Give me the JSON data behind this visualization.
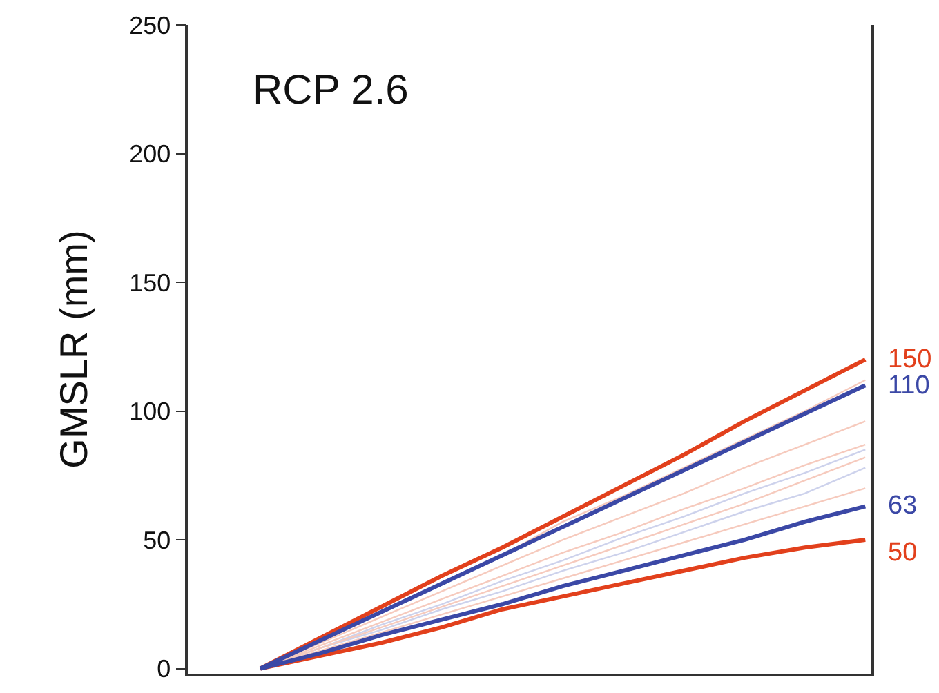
{
  "chart_data": {
    "type": "line",
    "title": "RCP 2.6",
    "ylabel": "GMSLR (mm)",
    "categories": [
      null,
      null,
      null,
      null,
      null,
      null,
      null,
      null,
      null,
      null,
      null
    ],
    "ylim": [
      -2,
      250
    ],
    "yticks": [
      0,
      50,
      100,
      150,
      200,
      250
    ],
    "tick_labels": "y",
    "grid": false,
    "series": [
      {
        "color": "#f6cabd",
        "values": [
          0,
          11,
          22,
          33,
          44,
          57,
          67,
          78,
          89,
          100,
          112
        ]
      },
      {
        "color": "#f6cabd",
        "values": [
          0,
          10,
          20,
          30,
          40,
          50,
          59,
          68,
          78,
          87,
          96
        ]
      },
      {
        "color": "#f6cabd",
        "values": [
          0,
          9,
          18,
          27,
          36,
          45,
          53,
          62,
          70,
          79,
          87
        ]
      },
      {
        "color": "#f6cabd",
        "values": [
          0,
          8,
          16,
          24,
          32,
          40,
          48,
          56,
          64,
          73,
          82
        ]
      },
      {
        "color": "#f6cabd",
        "values": [
          0,
          7,
          14,
          21,
          28,
          35,
          42,
          49,
          56,
          63,
          70
        ]
      },
      {
        "color": "#cdd2ec",
        "values": [
          0,
          8,
          17,
          25,
          34,
          42,
          51,
          59,
          68,
          76,
          85
        ]
      },
      {
        "color": "#cdd2ec",
        "values": [
          0,
          8,
          15,
          23,
          30,
          38,
          45,
          53,
          61,
          68,
          78
        ]
      },
      {
        "color": "#e2401c",
        "values": [
          0,
          12,
          24,
          36,
          47,
          59,
          71,
          83,
          96,
          108,
          120
        ]
      },
      {
        "color": "#3b48a6",
        "values": [
          0,
          11,
          22,
          33,
          44,
          55,
          66,
          77,
          88,
          99,
          110
        ]
      },
      {
        "color": "#3b48a6",
        "values": [
          0,
          6,
          13,
          19,
          25,
          32,
          38,
          44,
          50,
          57,
          63
        ]
      },
      {
        "color": "#e2401c",
        "values": [
          0,
          5,
          10,
          16,
          23,
          28,
          33,
          38,
          43,
          47,
          50
        ]
      }
    ],
    "annotations": [
      "150",
      "110",
      "63",
      "50"
    ]
  }
}
